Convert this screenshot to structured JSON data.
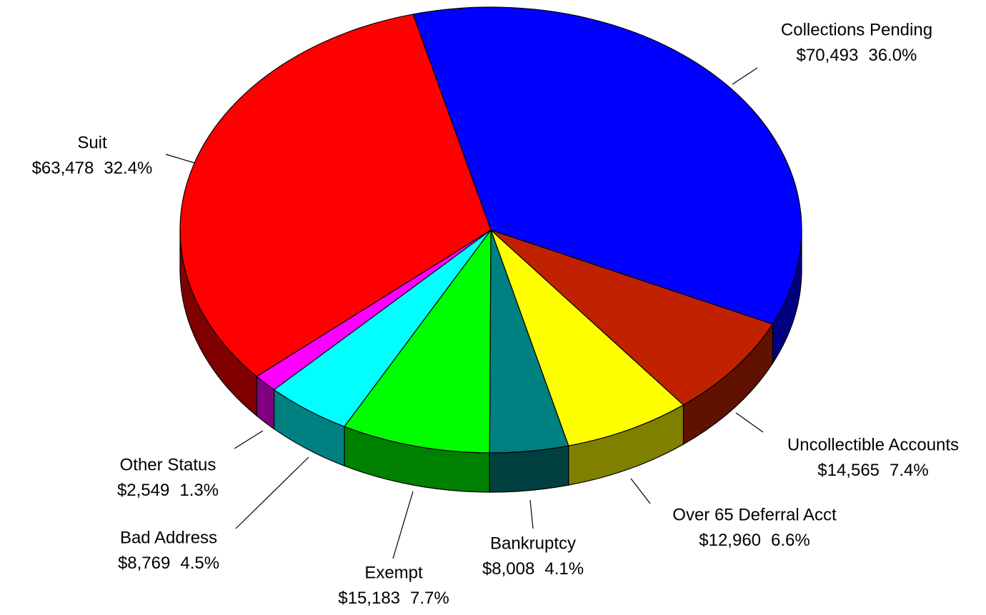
{
  "chart_data": {
    "type": "pie",
    "categories": [
      "Collections Pending",
      "Uncollectible Accounts",
      "Over 65 Deferral Acct",
      "Bankruptcy",
      "Exempt",
      "Bad Address",
      "Other Status",
      "Suit"
    ],
    "values": [
      70493,
      14565,
      12960,
      8008,
      15183,
      8769,
      2549,
      63478
    ],
    "value_labels": [
      "$70,493",
      "$14,565",
      "$12,960",
      "$8,008",
      "$15,183",
      "$8,769",
      "$2,549",
      "$63,478"
    ],
    "percents": [
      36.0,
      7.4,
      6.6,
      4.1,
      7.7,
      4.5,
      1.3,
      32.4
    ],
    "percent_labels": [
      "36.0%",
      "7.4%",
      "6.6%",
      "4.1%",
      "7.7%",
      "4.5%",
      "1.3%",
      "32.4%"
    ],
    "colors": [
      "#0000FF",
      "#C02200",
      "#FFFF00",
      "#008080",
      "#00FF00",
      "#00FFFF",
      "#FF00FF",
      "#FF0000"
    ]
  }
}
